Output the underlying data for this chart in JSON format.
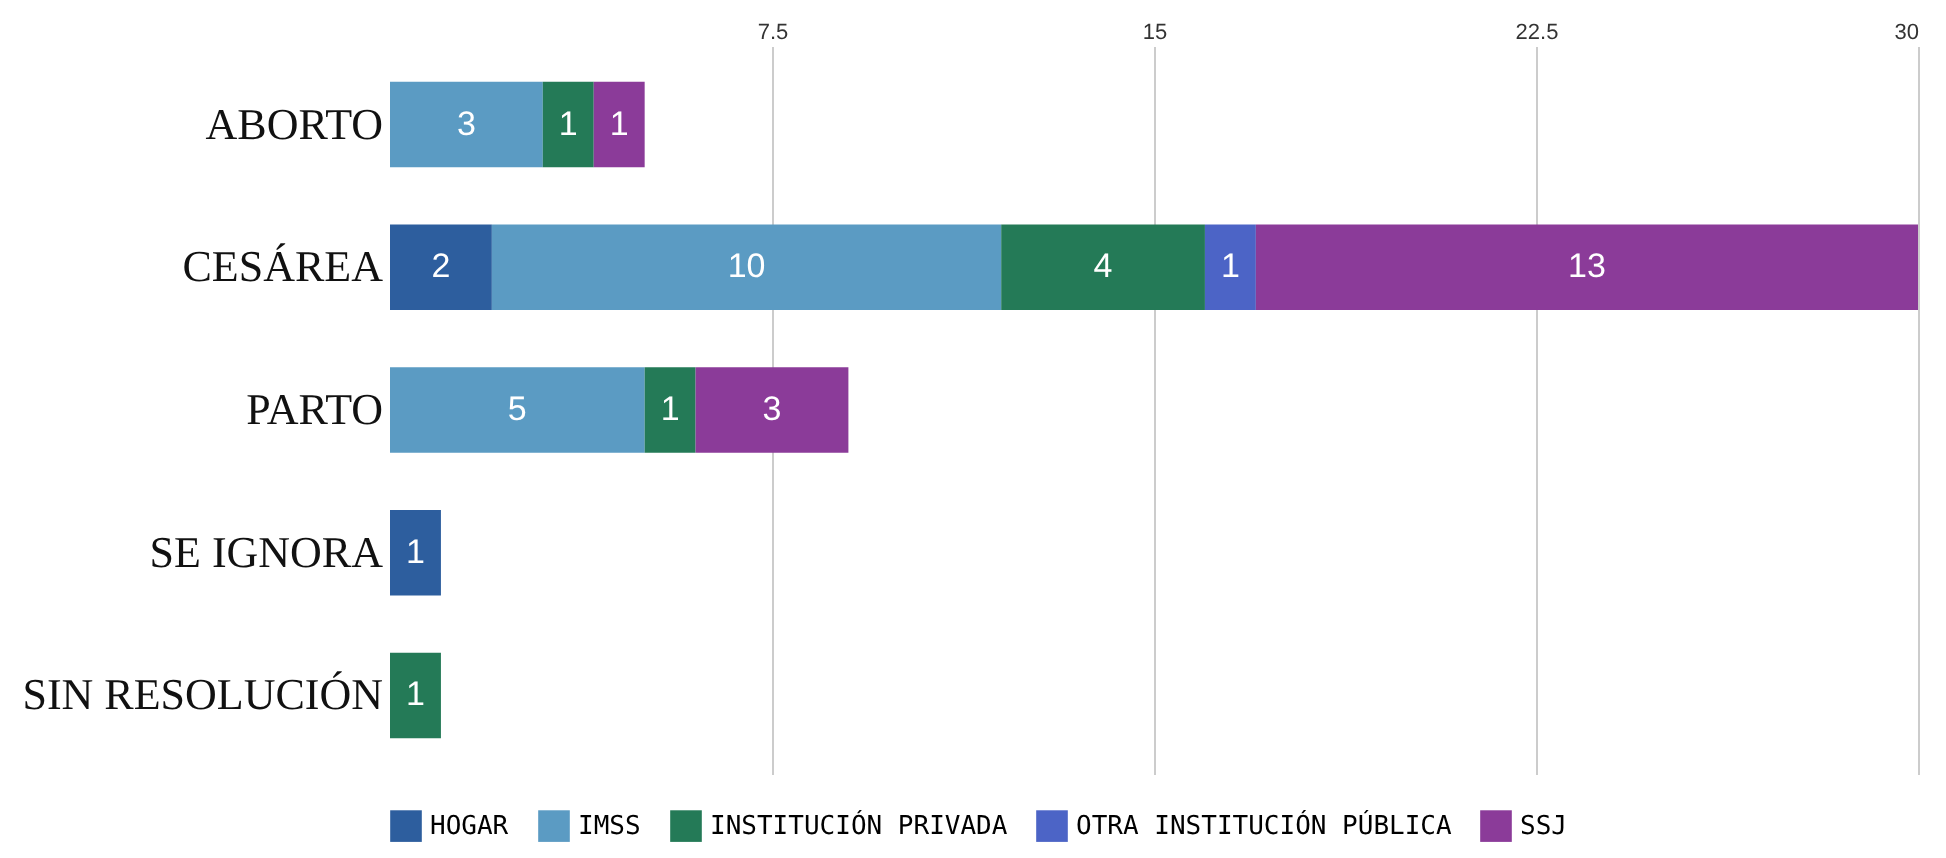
{
  "chart_data": {
    "type": "bar",
    "orientation": "horizontal",
    "stacked": true,
    "categories": [
      "ABORTO",
      "CESÁREA",
      "PARTO",
      "SE IGNORA",
      "SIN RESOLUCIÓN"
    ],
    "series": [
      {
        "name": "HOGAR",
        "color": "#2d5e9e",
        "values": [
          null,
          2,
          null,
          1,
          null
        ]
      },
      {
        "name": "IMSS",
        "color": "#5b9bc3",
        "values": [
          3,
          10,
          5,
          null,
          null
        ]
      },
      {
        "name": "INSTITUCIÓN PRIVADA",
        "color": "#247a57",
        "values": [
          1,
          4,
          1,
          null,
          1
        ]
      },
      {
        "name": "OTRA INSTITUCIÓN PÚBLICA",
        "color": "#4c64c6",
        "values": [
          null,
          1,
          null,
          null,
          null
        ]
      },
      {
        "name": "SSJ",
        "color": "#8b3b99",
        "values": [
          1,
          13,
          3,
          null,
          null
        ]
      }
    ],
    "xlim": [
      0,
      30
    ],
    "xticks": [
      7.5,
      15,
      22.5,
      30
    ],
    "grid": "x",
    "legend": "bottom",
    "data_labels": true
  }
}
